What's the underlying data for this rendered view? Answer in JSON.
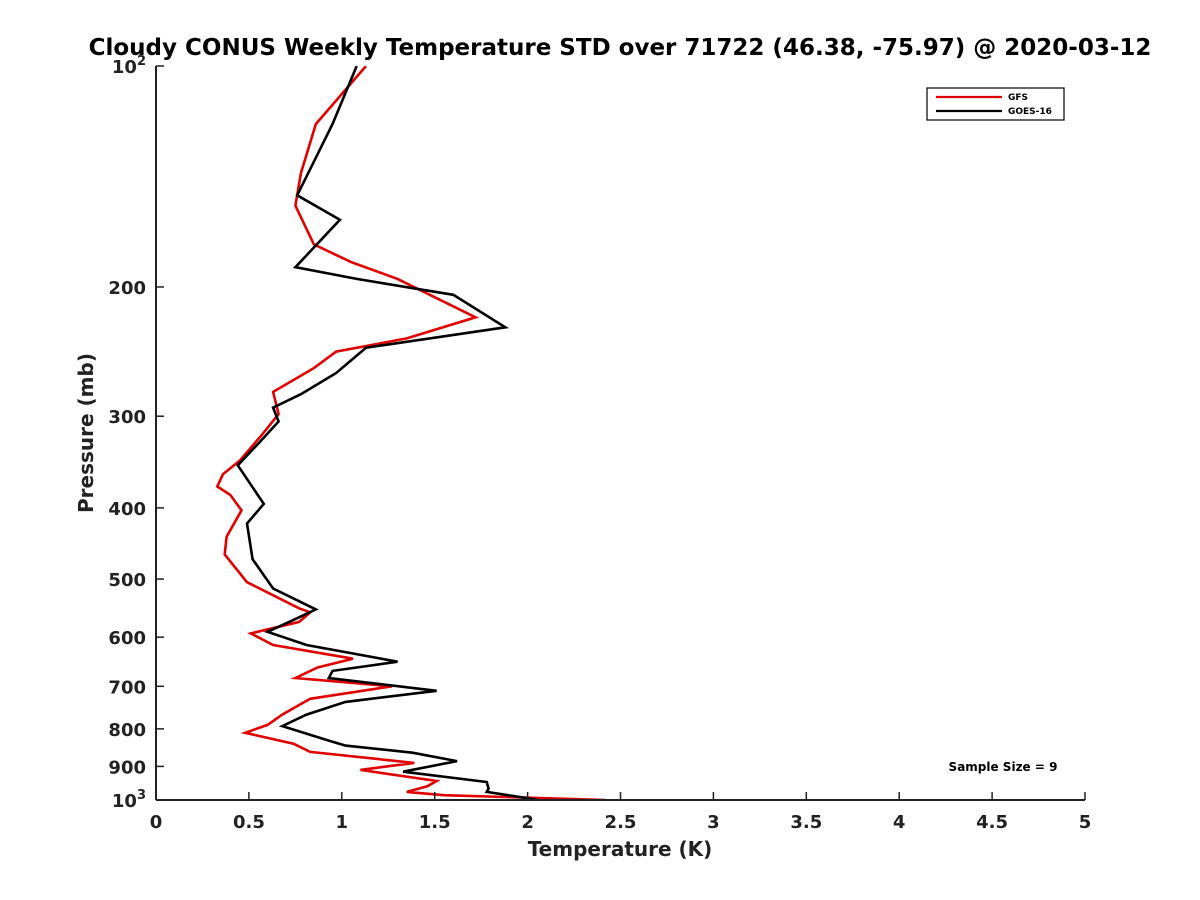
{
  "chart_data": {
    "type": "line",
    "title": "Cloudy CONUS Weekly Temperature STD over 71722 (46.38, -75.97) @ 2020-03-12",
    "xlabel": "Temperature (K)",
    "ylabel": "Pressure (mb)",
    "xlim": [
      0,
      5
    ],
    "ylim": [
      100,
      1000
    ],
    "yscale": "log",
    "yreversed": true,
    "grid": false,
    "x_ticks": [
      0,
      0.5,
      1,
      1.5,
      2,
      2.5,
      3,
      3.5,
      4,
      4.5,
      5
    ],
    "x_tick_labels": [
      "0",
      "0.5",
      "1",
      "1.5",
      "2",
      "2.5",
      "3",
      "3.5",
      "4",
      "4.5",
      "5"
    ],
    "y_ticks": [
      {
        "value": 100,
        "label": "10",
        "sup": "2"
      },
      {
        "value": 200,
        "label": "200",
        "sup": ""
      },
      {
        "value": 300,
        "label": "300",
        "sup": ""
      },
      {
        "value": 400,
        "label": "400",
        "sup": ""
      },
      {
        "value": 500,
        "label": "500",
        "sup": ""
      },
      {
        "value": 600,
        "label": "600",
        "sup": ""
      },
      {
        "value": 700,
        "label": "700",
        "sup": ""
      },
      {
        "value": 800,
        "label": "800",
        "sup": ""
      },
      {
        "value": 900,
        "label": "900",
        "sup": ""
      },
      {
        "value": 1000,
        "label": "10",
        "sup": "3"
      }
    ],
    "legend_position": "top-right",
    "annotation": "Sample Size = 9",
    "series": [
      {
        "name": "GFS",
        "color": "#e00000",
        "points": [
          [
            1.13,
            100
          ],
          [
            0.86,
            120
          ],
          [
            0.78,
            140
          ],
          [
            0.75,
            155
          ],
          [
            0.85,
            175
          ],
          [
            1.05,
            185
          ],
          [
            1.3,
            195
          ],
          [
            1.72,
            220
          ],
          [
            1.35,
            235
          ],
          [
            0.97,
            245
          ],
          [
            0.85,
            258
          ],
          [
            0.63,
            278
          ],
          [
            0.66,
            298
          ],
          [
            0.57,
            318
          ],
          [
            0.45,
            345
          ],
          [
            0.36,
            360
          ],
          [
            0.33,
            374
          ],
          [
            0.4,
            384
          ],
          [
            0.46,
            403
          ],
          [
            0.38,
            438
          ],
          [
            0.37,
            463
          ],
          [
            0.49,
            505
          ],
          [
            0.77,
            548
          ],
          [
            0.83,
            555
          ],
          [
            0.77,
            572
          ],
          [
            0.51,
            593
          ],
          [
            0.63,
            615
          ],
          [
            1.06,
            642
          ],
          [
            0.87,
            660
          ],
          [
            0.75,
            682
          ],
          [
            1.27,
            700
          ],
          [
            0.83,
            728
          ],
          [
            0.68,
            765
          ],
          [
            0.6,
            790
          ],
          [
            0.48,
            810
          ],
          [
            0.74,
            838
          ],
          [
            0.83,
            860
          ],
          [
            1.39,
            890
          ],
          [
            1.1,
            910
          ],
          [
            1.51,
            942
          ],
          [
            1.46,
            958
          ],
          [
            1.35,
            975
          ],
          [
            1.55,
            985
          ],
          [
            2.42,
            1000
          ]
        ]
      },
      {
        "name": "GOES-16",
        "color": "#000000",
        "points": [
          [
            1.08,
            100
          ],
          [
            0.95,
            120
          ],
          [
            0.76,
            150
          ],
          [
            0.99,
            162
          ],
          [
            0.75,
            188
          ],
          [
            1.08,
            195
          ],
          [
            1.6,
            205
          ],
          [
            1.88,
            227
          ],
          [
            1.13,
            242
          ],
          [
            0.97,
            262
          ],
          [
            0.78,
            280
          ],
          [
            0.63,
            292
          ],
          [
            0.66,
            305
          ],
          [
            0.56,
            325
          ],
          [
            0.44,
            350
          ],
          [
            0.52,
            375
          ],
          [
            0.58,
            395
          ],
          [
            0.49,
            420
          ],
          [
            0.52,
            470
          ],
          [
            0.63,
            515
          ],
          [
            0.86,
            550
          ],
          [
            0.73,
            570
          ],
          [
            0.6,
            590
          ],
          [
            0.81,
            615
          ],
          [
            1.3,
            648
          ],
          [
            0.95,
            667
          ],
          [
            0.93,
            682
          ],
          [
            1.51,
            710
          ],
          [
            1.02,
            735
          ],
          [
            0.81,
            765
          ],
          [
            0.68,
            793
          ],
          [
            0.93,
            830
          ],
          [
            1.02,
            843
          ],
          [
            1.38,
            862
          ],
          [
            1.62,
            885
          ],
          [
            1.33,
            915
          ],
          [
            1.78,
            945
          ],
          [
            1.79,
            965
          ],
          [
            1.78,
            975
          ],
          [
            1.95,
            990
          ],
          [
            2.06,
            1000
          ]
        ]
      }
    ]
  }
}
